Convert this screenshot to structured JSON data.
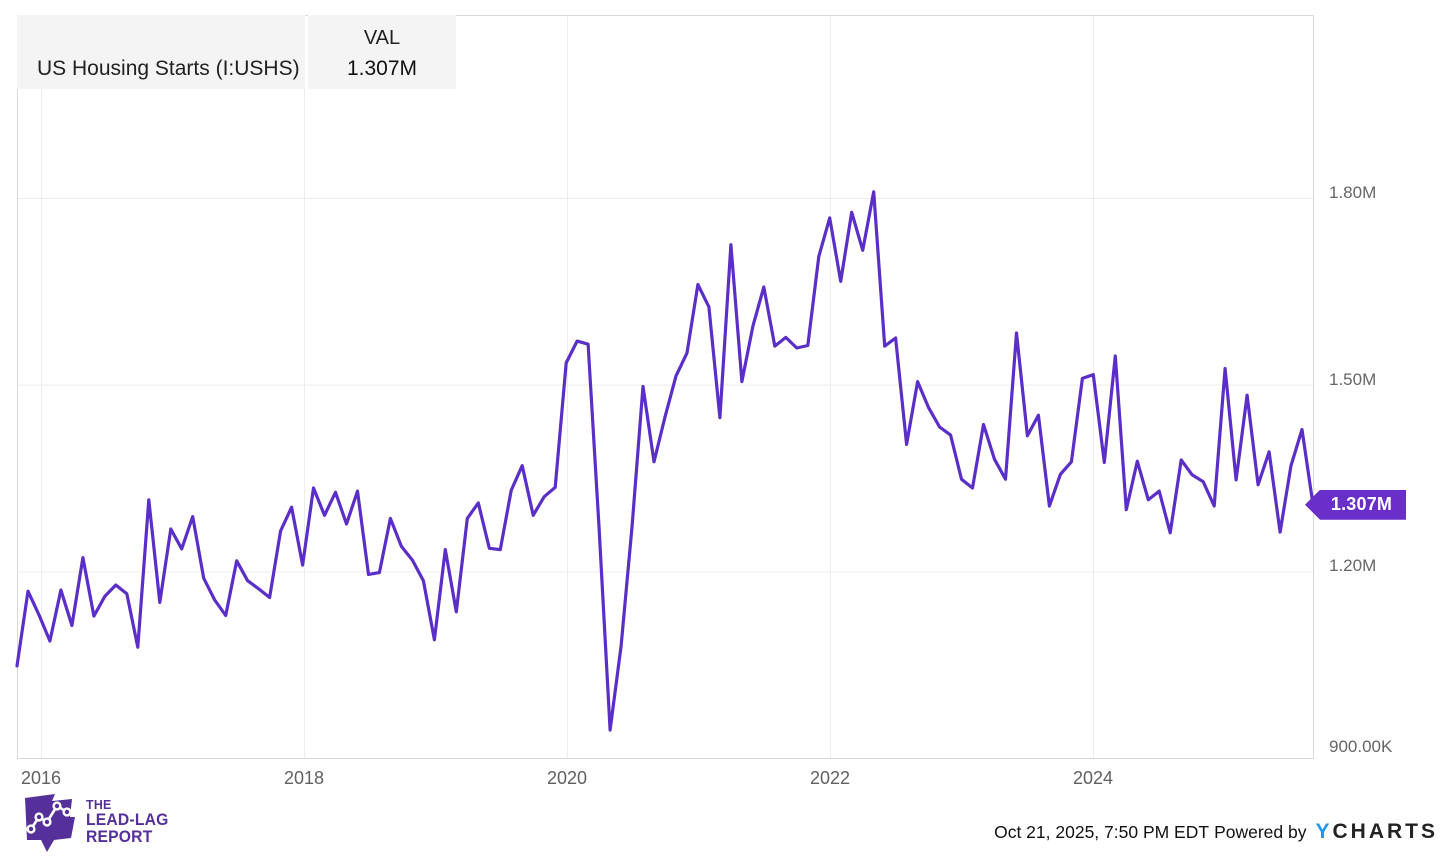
{
  "legend": {
    "series_name": "US Housing Starts (I:USHS)",
    "value_header": "VAL",
    "value": "1.307M"
  },
  "value_tag": "1.307M",
  "logo": {
    "line1": "THE",
    "line2": "LEAD-LAG",
    "line3": "REPORT"
  },
  "footer": {
    "timestamp": "Oct 21, 2025, 7:50 PM EDT",
    "powered_by": "Powered by",
    "brand_y": "Y",
    "brand_rest": "CHARTS"
  },
  "colors": {
    "line": "#5b2ec8",
    "tag_bg": "#6a2fc9",
    "logo_purple": "#55309a",
    "brand_blue": "#2196f3",
    "grid": "#ececec",
    "plot_border": "#d9d9d9",
    "legend_bg": "#f4f4f4",
    "axis_text": "#666666"
  },
  "chart_data": {
    "type": "line",
    "title": "US Housing Starts (I:USHS)",
    "unit": "housing starts, SAAR (M = millions, K = thousands)",
    "frequency": "monthly",
    "date_range": {
      "start": "2015-10",
      "end": "2025-08"
    },
    "current": {
      "label": "1.307M",
      "value": 1307
    },
    "grid": true,
    "legend_position": "top-left",
    "ylim": [
      900,
      2090
    ],
    "y_ticks": [
      {
        "label": "1.80M",
        "value": 1800
      },
      {
        "label": "1.50M",
        "value": 1500
      },
      {
        "label": "1.20M",
        "value": 1200
      },
      {
        "label": "900.00K",
        "value": 900
      }
    ],
    "x_ticks": [
      {
        "label": "2016",
        "year": 2016
      },
      {
        "label": "2018",
        "year": 2018
      },
      {
        "label": "2020",
        "year": 2020
      },
      {
        "label": "2022",
        "year": 2022
      },
      {
        "label": "2024",
        "year": 2024
      }
    ],
    "values_unit_thousands": true,
    "values": [
      1048,
      1168,
      1130,
      1088,
      1170,
      1113,
      1222,
      1128,
      1160,
      1178,
      1164,
      1078,
      1315,
      1150,
      1268,
      1236,
      1288,
      1189,
      1154,
      1129,
      1217,
      1185,
      1172,
      1158,
      1265,
      1303,
      1210,
      1334,
      1290,
      1327,
      1276,
      1329,
      1195,
      1198,
      1285,
      1240,
      1218,
      1185,
      1090,
      1235,
      1135,
      1285,
      1310,
      1237,
      1235,
      1330,
      1370,
      1290,
      1320,
      1335,
      1535,
      1570,
      1565,
      1269,
      945,
      1080,
      1273,
      1497,
      1376,
      1448,
      1514,
      1551,
      1661,
      1625,
      1447,
      1725,
      1505,
      1594,
      1657,
      1562,
      1576,
      1559,
      1563,
      1706,
      1768,
      1666,
      1777,
      1716,
      1810,
      1562,
      1575,
      1404,
      1505,
      1463,
      1432,
      1419,
      1348,
      1334,
      1436,
      1380,
      1348,
      1583,
      1418,
      1451,
      1305,
      1356,
      1376,
      1510,
      1516,
      1375,
      1546,
      1299,
      1377,
      1315,
      1329,
      1262,
      1379,
      1355,
      1344,
      1305,
      1526,
      1347,
      1483,
      1339,
      1392,
      1263,
      1370,
      1428,
      1307
    ]
  }
}
